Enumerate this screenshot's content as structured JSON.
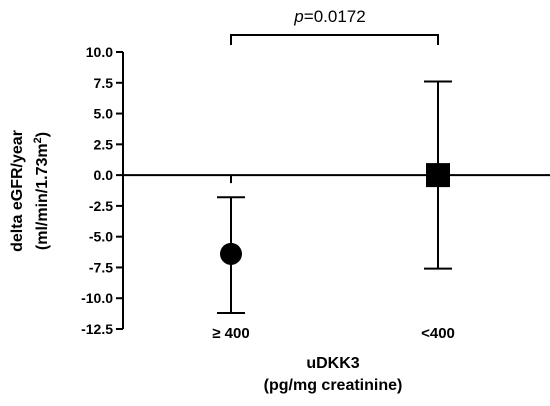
{
  "chart_data": {
    "type": "scatter",
    "title": "",
    "ylabel_line1": "delta eGFR/year",
    "ylabel_line2_pre": "(ml/min/1.73m",
    "ylabel_line2_sup": "2",
    "ylabel_line2_post": ")",
    "xlabel_line1": "uDKK3",
    "xlabel_line2": "(pg/mg creatinine)",
    "ylim": [
      -12.5,
      10.0
    ],
    "yticks": [
      10.0,
      7.5,
      5.0,
      2.5,
      0.0,
      -2.5,
      -5.0,
      -7.5,
      -10.0,
      -12.5
    ],
    "ytick_labels": [
      "10.0",
      "7.5",
      "5.0",
      "2.5",
      "0.0",
      "-2.5",
      "-5.0",
      "-7.5",
      "-10.0",
      "-12.5"
    ],
    "categories": [
      "≥ 400",
      "<400"
    ],
    "points": [
      {
        "category": "≥ 400",
        "mean": -6.4,
        "upper": -1.8,
        "lower": -11.2,
        "marker": "circle"
      },
      {
        "category": "<400",
        "mean": 0.0,
        "upper": 7.6,
        "lower": -7.6,
        "marker": "square"
      }
    ],
    "significance": {
      "p_italic": "p",
      "p_value": "=0.0172",
      "between": [
        "≥ 400",
        "<400"
      ]
    },
    "grid": false,
    "legend": "none",
    "color": "#000000"
  }
}
